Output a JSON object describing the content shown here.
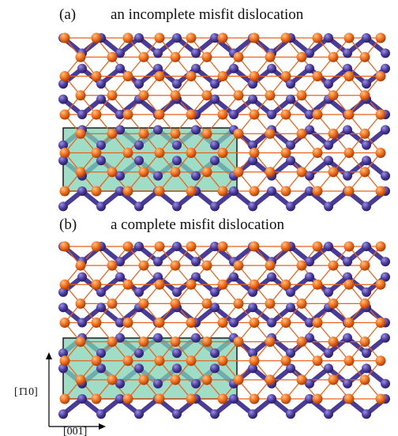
{
  "panels": [
    {
      "label": "(a)",
      "title": "an incomplete misfit dislocation"
    },
    {
      "label": "(b)",
      "title": "a complete misfit dislocation"
    }
  ],
  "axes": {
    "vertical": "[1̄10]",
    "horizontal": "[001]"
  }
}
